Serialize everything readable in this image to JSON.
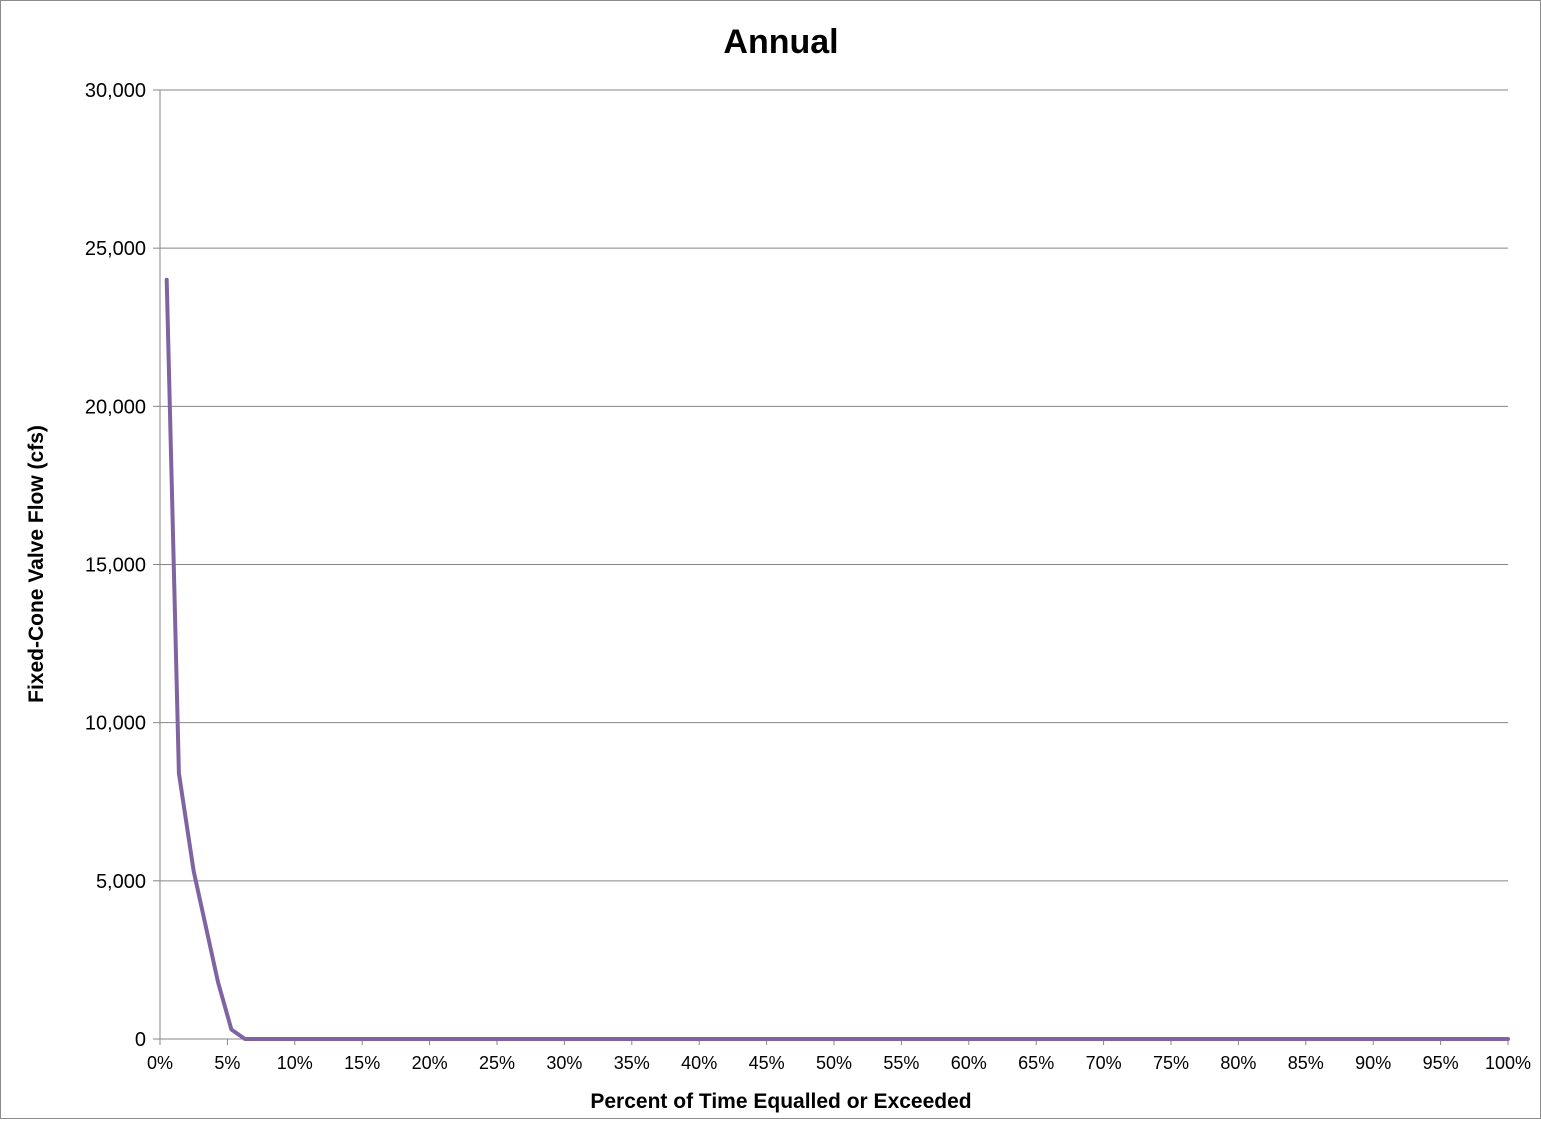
{
  "chart_data": {
    "type": "line",
    "title": "Annual",
    "xlabel": "Percent of Time Equalled or Exceeded",
    "ylabel": "Fixed-Cone Valve Flow (cfs)",
    "xlim": [
      0,
      100
    ],
    "ylim": [
      0,
      30000
    ],
    "x_ticks": [
      0,
      5,
      10,
      15,
      20,
      25,
      30,
      35,
      40,
      45,
      50,
      55,
      60,
      65,
      70,
      75,
      80,
      85,
      90,
      95,
      100
    ],
    "x_tick_labels": [
      "0%",
      "5%",
      "10%",
      "15%",
      "20%",
      "25%",
      "30%",
      "35%",
      "40%",
      "45%",
      "50%",
      "55%",
      "60%",
      "65%",
      "70%",
      "75%",
      "80%",
      "85%",
      "90%",
      "95%",
      "100%"
    ],
    "y_ticks": [
      0,
      5000,
      10000,
      15000,
      20000,
      25000,
      30000
    ],
    "y_tick_labels": [
      "0",
      "5,000",
      "10,000",
      "15,000",
      "20,000",
      "25,000",
      "30,000"
    ],
    "grid": "horizontal",
    "legend": "none",
    "series": [
      {
        "color": "#8064a2",
        "x": [
          0.5,
          1.4,
          2.5,
          4.3,
          5.3,
          6.3,
          10,
          20,
          30,
          40,
          50,
          60,
          70,
          80,
          90,
          100
        ],
        "y": [
          24000,
          8400,
          5300,
          1800,
          300,
          0,
          0,
          0,
          0,
          0,
          0,
          0,
          0,
          0,
          0,
          0
        ]
      }
    ]
  }
}
